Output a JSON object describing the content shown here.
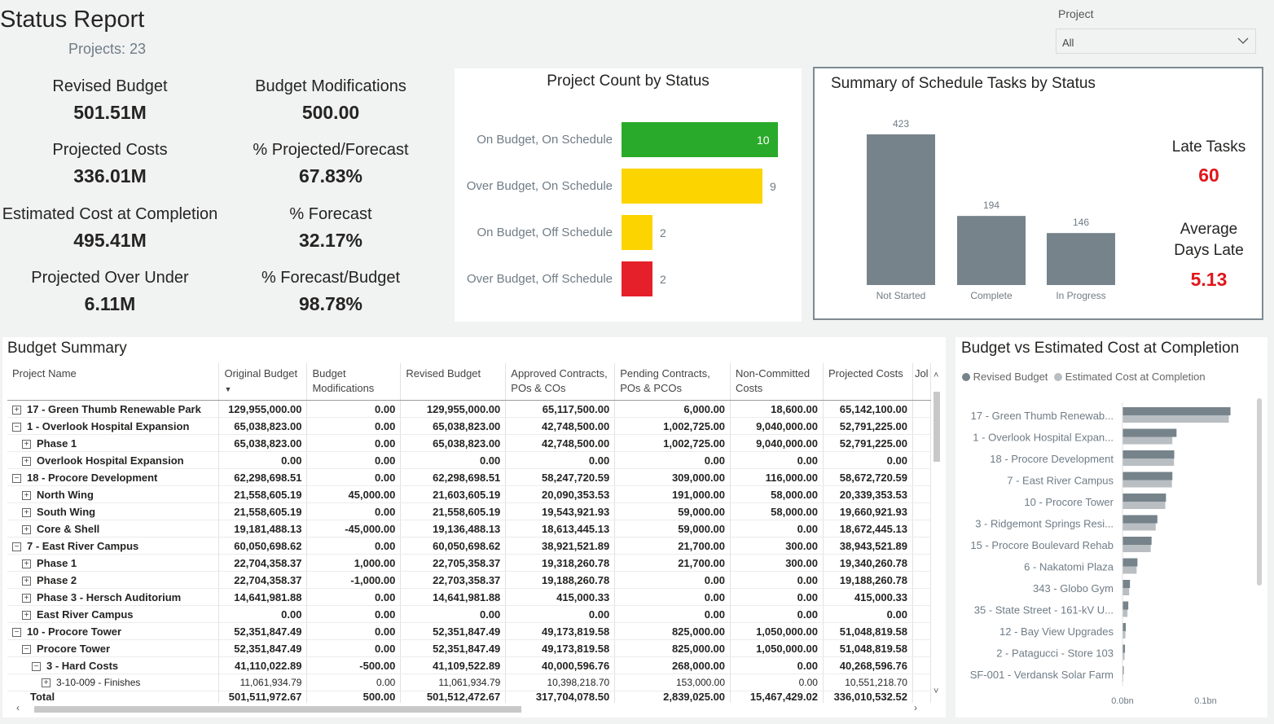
{
  "header": {
    "title": "Status Report",
    "subtitle": "Projects: 23"
  },
  "filter": {
    "label": "Project",
    "value": "All"
  },
  "kpis": [
    {
      "label": "Revised Budget",
      "value": "501.51M"
    },
    {
      "label": "Budget Modifications",
      "value": "500.00"
    },
    {
      "label": "Projected Costs",
      "value": "336.01M"
    },
    {
      "label": "% Projected/Forecast",
      "value": "67.83%"
    },
    {
      "label": "Estimated Cost at Completion",
      "value": "495.41M"
    },
    {
      "label": "% Forecast",
      "value": "32.17%"
    },
    {
      "label": "Projected Over Under",
      "value": "6.11M"
    },
    {
      "label": "% Forecast/Budget",
      "value": "98.78%"
    }
  ],
  "colors": {
    "green": "#2aaa2a",
    "yellow": "#fcd400",
    "red": "#e5202a",
    "gray": "#76838a",
    "late": "#e0161c"
  },
  "chart_data": [
    {
      "type": "bar",
      "title": "Project Count by Status",
      "orientation": "horizontal",
      "categories": [
        "On Budget, On Schedule",
        "Over Budget, On Schedule",
        "On Budget, Off Schedule",
        "Over Budget, Off Schedule"
      ],
      "values": [
        10,
        9,
        2,
        2
      ],
      "colors": [
        "#2aaa2a",
        "#fcd400",
        "#fcd400",
        "#e5202a"
      ]
    },
    {
      "type": "bar",
      "title": "Summary of Schedule Tasks by Status",
      "categories": [
        "Not Started",
        "Complete",
        "In Progress"
      ],
      "values": [
        423,
        194,
        146
      ],
      "ylim": [
        0,
        423
      ]
    },
    {
      "type": "bar",
      "title": "Budget vs Estimated Cost at Completion",
      "orientation": "horizontal",
      "categories": [
        "17 - Green Thumb Renewab...",
        "1 - Overlook Hospital Expan...",
        "18 - Procore Development",
        "7 - East River Campus",
        "10 - Procore Tower",
        "3 - Ridgemont Springs Resi...",
        "15 - Procore Boulevard Rehab",
        "6 - Nakatomi Plaza",
        "343 - Globo Gym",
        "35 - State Street - 161-kV U...",
        "12 - Bay View Upgrades",
        "2 - Patagucci - Store 103",
        "SF-001 - Verdansk Solar Farm"
      ],
      "series": [
        {
          "name": "Revised Budget",
          "values": [
            129955000,
            65038823,
            62298698.51,
            60050698.62,
            52351847.49,
            42000000,
            35000000,
            18000000,
            9000000,
            7000000,
            4000000,
            3000000,
            1500000
          ]
        },
        {
          "name": "Estimated Cost at Completion",
          "values": [
            128000000,
            60000000,
            62000000,
            59500000,
            51500000,
            40000000,
            34000000,
            17000000,
            8000000,
            6000000,
            3500000,
            2500000,
            1000000
          ]
        }
      ],
      "x_ticks": [
        "0.0bn",
        "0.1bn"
      ],
      "xlim": [
        0,
        0.13
      ],
      "legend": "top"
    }
  ],
  "tasks": {
    "late_label": "Late Tasks",
    "late_value": "60",
    "avg_label_1": "Average",
    "avg_label_2": "Days Late",
    "avg_value": "5.13"
  },
  "table": {
    "title": "Budget Summary",
    "columns": [
      "Project Name",
      "Original Budget",
      "Budget Modifications",
      "Revised Budget",
      "Approved Contracts, POs & COs",
      "Pending Contracts, POs & PCOs",
      "Non-Committed Costs",
      "Projected Costs",
      "Jol"
    ],
    "rows": [
      {
        "indent": 0,
        "exp": "+",
        "cells": [
          "17 - Green Thumb Renewable Park",
          "129,955,000.00",
          "0.00",
          "129,955,000.00",
          "65,117,500.00",
          "6,000.00",
          "18,600.00",
          "65,142,100.00"
        ]
      },
      {
        "indent": 0,
        "exp": "−",
        "cells": [
          "1 - Overlook Hospital Expansion",
          "65,038,823.00",
          "0.00",
          "65,038,823.00",
          "42,748,500.00",
          "1,002,725.00",
          "9,040,000.00",
          "52,791,225.00"
        ]
      },
      {
        "indent": 1,
        "exp": "+",
        "cells": [
          "Phase 1",
          "65,038,823.00",
          "0.00",
          "65,038,823.00",
          "42,748,500.00",
          "1,002,725.00",
          "9,040,000.00",
          "52,791,225.00"
        ]
      },
      {
        "indent": 1,
        "exp": "+",
        "cells": [
          "Overlook Hospital Expansion",
          "0.00",
          "0.00",
          "0.00",
          "0.00",
          "0.00",
          "0.00",
          "0.00"
        ]
      },
      {
        "indent": 0,
        "exp": "−",
        "cells": [
          "18 - Procore Development",
          "62,298,698.51",
          "0.00",
          "62,298,698.51",
          "58,247,720.59",
          "309,000.00",
          "116,000.00",
          "58,672,720.59"
        ]
      },
      {
        "indent": 1,
        "exp": "+",
        "cells": [
          "North Wing",
          "21,558,605.19",
          "45,000.00",
          "21,603,605.19",
          "20,090,353.53",
          "191,000.00",
          "58,000.00",
          "20,339,353.53"
        ]
      },
      {
        "indent": 1,
        "exp": "+",
        "cells": [
          "South Wing",
          "21,558,605.19",
          "0.00",
          "21,558,605.19",
          "19,543,921.93",
          "59,000.00",
          "58,000.00",
          "19,660,921.93"
        ]
      },
      {
        "indent": 1,
        "exp": "+",
        "cells": [
          "Core & Shell",
          "19,181,488.13",
          "-45,000.00",
          "19,136,488.13",
          "18,613,445.13",
          "59,000.00",
          "0.00",
          "18,672,445.13"
        ]
      },
      {
        "indent": 0,
        "exp": "−",
        "cells": [
          "7 - East River Campus",
          "60,050,698.62",
          "0.00",
          "60,050,698.62",
          "38,921,521.89",
          "21,700.00",
          "300.00",
          "38,943,521.89"
        ]
      },
      {
        "indent": 1,
        "exp": "+",
        "cells": [
          "Phase 1",
          "22,704,358.37",
          "1,000.00",
          "22,705,358.37",
          "19,318,260.78",
          "21,700.00",
          "300.00",
          "19,340,260.78"
        ]
      },
      {
        "indent": 1,
        "exp": "+",
        "cells": [
          "Phase 2",
          "22,704,358.37",
          "-1,000.00",
          "22,703,358.37",
          "19,188,260.78",
          "0.00",
          "0.00",
          "19,188,260.78"
        ]
      },
      {
        "indent": 1,
        "exp": "+",
        "cells": [
          "Phase 3 - Hersch Auditorium",
          "14,641,981.88",
          "0.00",
          "14,641,981.88",
          "415,000.33",
          "0.00",
          "0.00",
          "415,000.33"
        ]
      },
      {
        "indent": 1,
        "exp": "+",
        "cells": [
          "East River Campus",
          "0.00",
          "0.00",
          "0.00",
          "0.00",
          "0.00",
          "0.00",
          "0.00"
        ]
      },
      {
        "indent": 0,
        "exp": "−",
        "cells": [
          "10 - Procore Tower",
          "52,351,847.49",
          "0.00",
          "52,351,847.49",
          "49,173,819.58",
          "825,000.00",
          "1,050,000.00",
          "51,048,819.58"
        ]
      },
      {
        "indent": 1,
        "exp": "−",
        "cells": [
          "Procore Tower",
          "52,351,847.49",
          "0.00",
          "52,351,847.49",
          "49,173,819.58",
          "825,000.00",
          "1,050,000.00",
          "51,048,819.58"
        ]
      },
      {
        "indent": 2,
        "exp": "−",
        "cells": [
          "3 - Hard Costs",
          "41,110,022.89",
          "-500.00",
          "41,109,522.89",
          "40,000,596.76",
          "268,000.00",
          "0.00",
          "40,268,596.76"
        ]
      },
      {
        "indent": 3,
        "exp": "+",
        "small": true,
        "cells": [
          "3-10-009 - Finishes",
          "11,061,934.79",
          "0.00",
          "11,061,934.79",
          "10,398,218.70",
          "153,000.00",
          "0.00",
          "10,551,218.70"
        ]
      }
    ],
    "total": [
      "Total",
      "501,511,972.67",
      "500.00",
      "501,512,472.67",
      "317,704,078.50",
      "2,839,025.00",
      "15,467,429.02",
      "336,010,532.52"
    ]
  }
}
